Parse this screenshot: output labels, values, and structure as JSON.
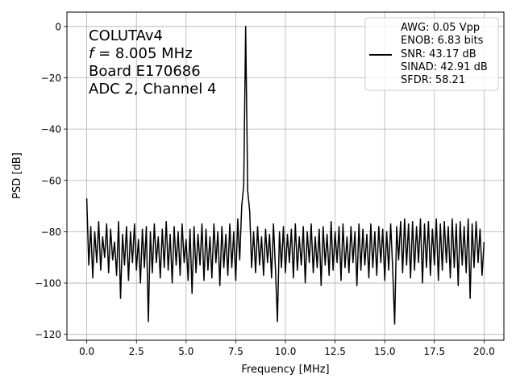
{
  "chart_data": {
    "type": "line",
    "xlabel": "Frequency [MHz]",
    "ylabel": "PSD [dB]",
    "xlim": [
      -1.0,
      21.0
    ],
    "ylim": [
      -122.3,
      5.6
    ],
    "xticks": [
      "0.0",
      "2.5",
      "5.0",
      "7.5",
      "10.0",
      "12.5",
      "15.0",
      "17.5",
      "20.0"
    ],
    "xtick_values": [
      0,
      2.5,
      5,
      7.5,
      10,
      12.5,
      15,
      17.5,
      20
    ],
    "yticks": [
      "0",
      "−20",
      "−40",
      "−60",
      "−80",
      "−100",
      "−120"
    ],
    "ytick_values": [
      0,
      -20,
      -40,
      -60,
      -80,
      -100,
      -120
    ],
    "grid": true,
    "annotation": [
      "COLUTAv4",
      "= 8.005 MHz",
      "Board E170686",
      "ADC 2, Channel 4"
    ],
    "annotation_symbol": "f",
    "legend": {
      "placement": "top-right",
      "entries": [
        "AWG: 0.05 Vpp",
        "ENOB: 6.83 bits",
        "SNR: 43.17 dB",
        "SINAD: 42.91 dB",
        "SFDR: 58.21"
      ]
    },
    "series": [
      {
        "color": "#000000",
        "x": [
          0.0,
          0.1,
          0.2,
          0.3,
          0.4,
          0.5,
          0.6,
          0.7,
          0.8,
          0.9,
          1.0,
          1.1,
          1.2,
          1.3,
          1.4,
          1.5,
          1.6,
          1.7,
          1.8,
          1.9,
          2.0,
          2.1,
          2.2,
          2.3,
          2.4,
          2.5,
          2.6,
          2.7,
          2.8,
          2.9,
          3.0,
          3.1,
          3.2,
          3.3,
          3.4,
          3.5,
          3.6,
          3.7,
          3.8,
          3.9,
          4.0,
          4.1,
          4.2,
          4.3,
          4.4,
          4.5,
          4.6,
          4.7,
          4.8,
          4.9,
          5.0,
          5.1,
          5.2,
          5.3,
          5.4,
          5.5,
          5.6,
          5.7,
          5.8,
          5.9,
          6.0,
          6.1,
          6.2,
          6.3,
          6.4,
          6.5,
          6.6,
          6.7,
          6.8,
          6.9,
          7.0,
          7.1,
          7.2,
          7.3,
          7.4,
          7.5,
          7.6,
          7.7,
          7.8,
          7.9,
          8.0,
          8.1,
          8.2,
          8.3,
          8.4,
          8.5,
          8.6,
          8.7,
          8.8,
          8.9,
          9.0,
          9.1,
          9.2,
          9.3,
          9.4,
          9.5,
          9.6,
          9.7,
          9.8,
          9.9,
          10.0,
          10.1,
          10.2,
          10.3,
          10.4,
          10.5,
          10.6,
          10.7,
          10.8,
          10.9,
          11.0,
          11.1,
          11.2,
          11.3,
          11.4,
          11.5,
          11.6,
          11.7,
          11.8,
          11.9,
          12.0,
          12.1,
          12.2,
          12.3,
          12.4,
          12.5,
          12.6,
          12.7,
          12.8,
          12.9,
          13.0,
          13.1,
          13.2,
          13.3,
          13.4,
          13.5,
          13.6,
          13.7,
          13.8,
          13.9,
          14.0,
          14.1,
          14.2,
          14.3,
          14.4,
          14.5,
          14.6,
          14.7,
          14.8,
          14.9,
          15.0,
          15.1,
          15.2,
          15.3,
          15.4,
          15.5,
          15.6,
          15.7,
          15.8,
          15.9,
          16.0,
          16.1,
          16.2,
          16.3,
          16.4,
          16.5,
          16.6,
          16.7,
          16.8,
          16.9,
          17.0,
          17.1,
          17.2,
          17.3,
          17.4,
          17.5,
          17.6,
          17.7,
          17.8,
          17.9,
          18.0,
          18.1,
          18.2,
          18.3,
          18.4,
          18.5,
          18.6,
          18.7,
          18.8,
          18.9,
          19.0,
          19.1,
          19.2,
          19.3,
          19.4,
          19.5,
          19.6,
          19.7,
          19.8,
          19.9,
          20.0
        ],
        "y": [
          -67,
          -93,
          -78,
          -98,
          -80,
          -92,
          -76,
          -95,
          -82,
          -90,
          -77,
          -96,
          -79,
          -91,
          -84,
          -97,
          -76,
          -106,
          -81,
          -93,
          -78,
          -99,
          -80,
          -92,
          -77,
          -95,
          -83,
          -100,
          -79,
          -94,
          -78,
          -115,
          -80,
          -96,
          -77,
          -92,
          -82,
          -98,
          -79,
          -94,
          -76,
          -95,
          -81,
          -100,
          -78,
          -93,
          -80,
          -97,
          -77,
          -92,
          -83,
          -99,
          -79,
          -104,
          -78,
          -96,
          -81,
          -93,
          -77,
          -99,
          -79,
          -95,
          -82,
          -98,
          -77,
          -92,
          -80,
          -101,
          -78,
          -94,
          -81,
          -97,
          -77,
          -94,
          -80,
          -99,
          -75,
          -91,
          -70,
          -62,
          0,
          -64,
          -72,
          -94,
          -80,
          -96,
          -78,
          -93,
          -82,
          -97,
          -79,
          -92,
          -81,
          -98,
          -77,
          -95,
          -115,
          -80,
          -94,
          -78,
          -96,
          -81,
          -92,
          -79,
          -98,
          -77,
          -95,
          -82,
          -93,
          -78,
          -100,
          -80,
          -92,
          -77,
          -96,
          -82,
          -94,
          -79,
          -101,
          -78,
          -93,
          -81,
          -97,
          -76,
          -95,
          -80,
          -92,
          -78,
          -99,
          -77,
          -94,
          -82,
          -96,
          -78,
          -92,
          -80,
          -101,
          -77,
          -95,
          -79,
          -93,
          -81,
          -98,
          -77,
          -94,
          -80,
          -97,
          -78,
          -92,
          -79,
          -99,
          -80,
          -95,
          -77,
          -94,
          -116,
          -78,
          -91,
          -76,
          -96,
          -75,
          -93,
          -77,
          -98,
          -76,
          -95,
          -78,
          -92,
          -75,
          -100,
          -77,
          -94,
          -76,
          -97,
          -79,
          -93,
          -75,
          -99,
          -77,
          -95,
          -76,
          -92,
          -78,
          -98,
          -75,
          -94,
          -77,
          -101,
          -76,
          -93,
          -78,
          -96,
          -75,
          -106,
          -77,
          -94,
          -76,
          -92,
          -79,
          -97,
          -84
        ]
      }
    ]
  }
}
